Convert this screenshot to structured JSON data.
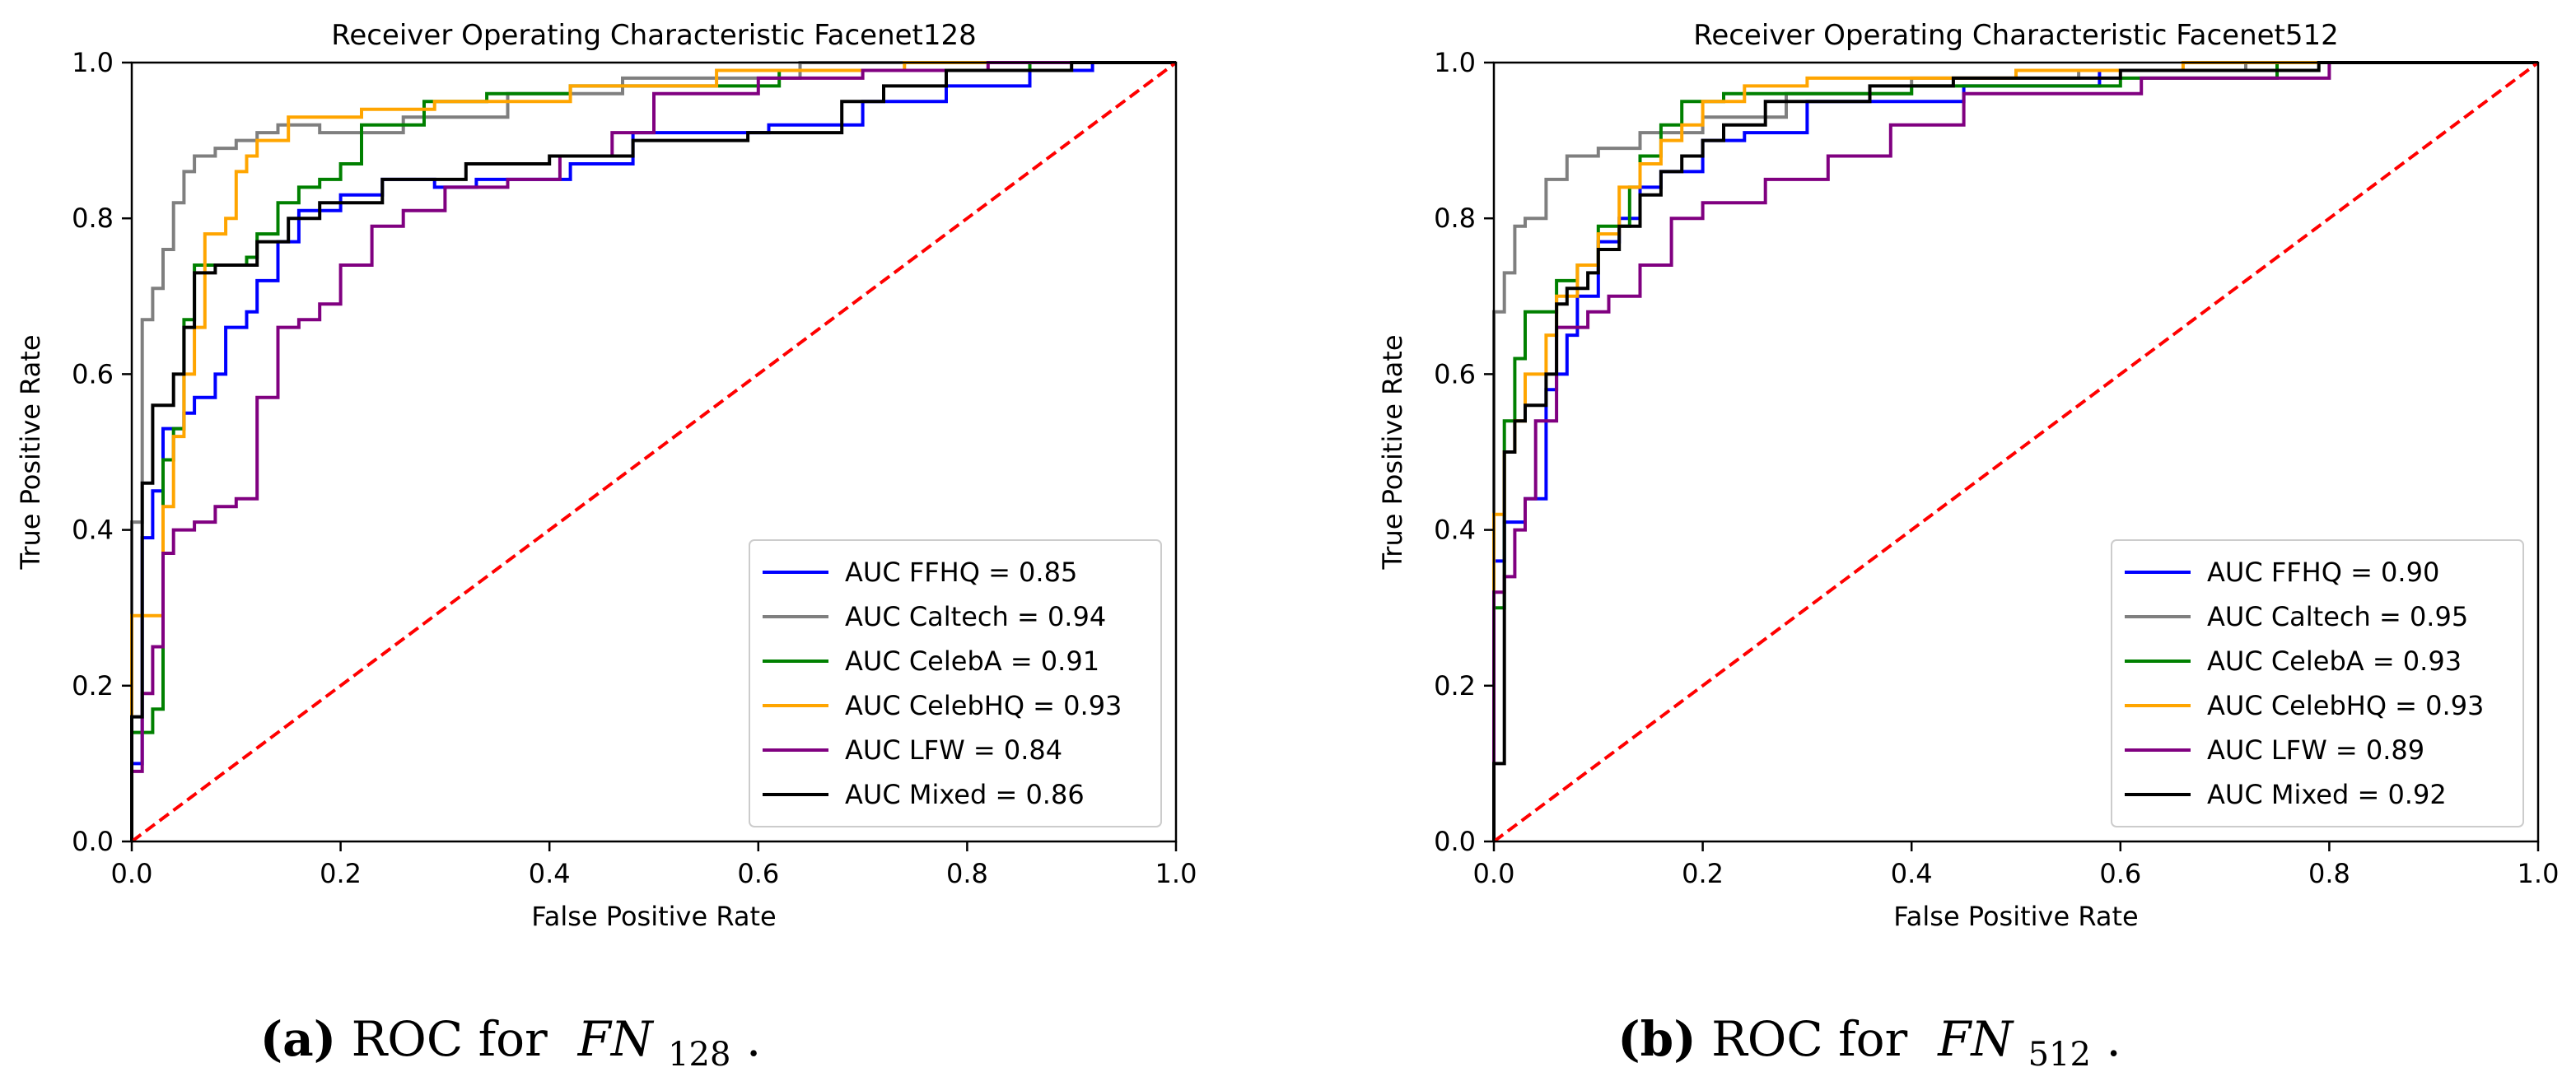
{
  "figure": {
    "subfigures": [
      {
        "label": "(a)",
        "text_pre": "ROC for ",
        "text_italic": "FN",
        "text_sub": "128",
        "text_post": "."
      },
      {
        "label": "(b)",
        "text_pre": "ROC for ",
        "text_italic": "FN",
        "text_sub": "512",
        "text_post": "."
      }
    ]
  },
  "chart_data": [
    {
      "type": "line",
      "title": "Receiver Operating Characteristic Facenet128",
      "xlabel": "False Positive Rate",
      "ylabel": "True Positive Rate",
      "xlim": [
        0,
        1
      ],
      "ylim": [
        0,
        1
      ],
      "xticks": [
        "0.0",
        "0.2",
        "0.4",
        "0.6",
        "0.8",
        "1.0"
      ],
      "yticks": [
        "0.0",
        "0.2",
        "0.4",
        "0.6",
        "0.8",
        "1.0"
      ],
      "legend_position": "lower-right",
      "diagonal": {
        "color": "#ff0000",
        "style": "dashed",
        "x": [
          0,
          1
        ],
        "y": [
          0,
          1
        ]
      },
      "series": [
        {
          "name": "AUC FFHQ = 0.85",
          "color": "#0000ff",
          "x": [
            0.0,
            0.0,
            0.01,
            0.01,
            0.02,
            0.02,
            0.03,
            0.03,
            0.05,
            0.05,
            0.06,
            0.06,
            0.08,
            0.08,
            0.09,
            0.09,
            0.11,
            0.11,
            0.12,
            0.12,
            0.14,
            0.14,
            0.16,
            0.16,
            0.2,
            0.2,
            0.24,
            0.24,
            0.29,
            0.29,
            0.33,
            0.33,
            0.42,
            0.42,
            0.48,
            0.48,
            0.61,
            0.61,
            0.7,
            0.7,
            0.78,
            0.78,
            0.86,
            0.86,
            0.92,
            0.92,
            1.0
          ],
          "y": [
            0.0,
            0.1,
            0.1,
            0.39,
            0.39,
            0.45,
            0.45,
            0.53,
            0.53,
            0.55,
            0.55,
            0.57,
            0.57,
            0.6,
            0.6,
            0.66,
            0.66,
            0.68,
            0.68,
            0.72,
            0.72,
            0.77,
            0.77,
            0.81,
            0.81,
            0.83,
            0.83,
            0.85,
            0.85,
            0.84,
            0.84,
            0.85,
            0.85,
            0.87,
            0.87,
            0.91,
            0.91,
            0.92,
            0.92,
            0.95,
            0.95,
            0.97,
            0.97,
            0.99,
            0.99,
            1.0,
            1.0
          ]
        },
        {
          "name": "AUC Caltech = 0.94",
          "color": "#7f7f7f",
          "x": [
            0.0,
            0.0,
            0.01,
            0.01,
            0.02,
            0.02,
            0.03,
            0.03,
            0.04,
            0.04,
            0.05,
            0.05,
            0.06,
            0.06,
            0.08,
            0.08,
            0.1,
            0.1,
            0.12,
            0.12,
            0.14,
            0.14,
            0.18,
            0.18,
            0.26,
            0.26,
            0.36,
            0.36,
            0.47,
            0.47,
            0.64,
            0.64,
            1.0
          ],
          "y": [
            0.0,
            0.41,
            0.41,
            0.67,
            0.67,
            0.71,
            0.71,
            0.76,
            0.76,
            0.82,
            0.82,
            0.86,
            0.86,
            0.88,
            0.88,
            0.89,
            0.89,
            0.9,
            0.9,
            0.91,
            0.91,
            0.92,
            0.92,
            0.91,
            0.91,
            0.93,
            0.93,
            0.96,
            0.96,
            0.98,
            0.98,
            1.0,
            1.0
          ]
        },
        {
          "name": "AUC CelebA = 0.91",
          "color": "#008000",
          "x": [
            0.0,
            0.0,
            0.02,
            0.02,
            0.03,
            0.03,
            0.04,
            0.04,
            0.05,
            0.05,
            0.06,
            0.06,
            0.11,
            0.11,
            0.12,
            0.12,
            0.14,
            0.14,
            0.16,
            0.16,
            0.18,
            0.18,
            0.2,
            0.2,
            0.22,
            0.22,
            0.28,
            0.28,
            0.34,
            0.34,
            0.42,
            0.42,
            0.62,
            0.62,
            0.86,
            0.86,
            1.0
          ],
          "y": [
            0.0,
            0.14,
            0.14,
            0.17,
            0.17,
            0.49,
            0.49,
            0.53,
            0.53,
            0.67,
            0.67,
            0.74,
            0.74,
            0.75,
            0.75,
            0.78,
            0.78,
            0.82,
            0.82,
            0.84,
            0.84,
            0.85,
            0.85,
            0.87,
            0.87,
            0.92,
            0.92,
            0.95,
            0.95,
            0.96,
            0.96,
            0.97,
            0.97,
            0.99,
            0.99,
            1.0,
            1.0
          ]
        },
        {
          "name": "AUC CelebHQ = 0.93",
          "color": "#ffa500",
          "x": [
            0.0,
            0.0,
            0.03,
            0.03,
            0.04,
            0.04,
            0.05,
            0.05,
            0.06,
            0.06,
            0.07,
            0.07,
            0.09,
            0.09,
            0.1,
            0.1,
            0.11,
            0.11,
            0.12,
            0.12,
            0.15,
            0.15,
            0.22,
            0.22,
            0.29,
            0.29,
            0.42,
            0.42,
            0.56,
            0.56,
            0.74,
            0.74,
            1.0
          ],
          "y": [
            0.0,
            0.29,
            0.29,
            0.43,
            0.43,
            0.52,
            0.52,
            0.6,
            0.6,
            0.66,
            0.66,
            0.78,
            0.78,
            0.8,
            0.8,
            0.86,
            0.86,
            0.88,
            0.88,
            0.9,
            0.9,
            0.93,
            0.93,
            0.94,
            0.94,
            0.95,
            0.95,
            0.97,
            0.97,
            0.99,
            0.99,
            1.0,
            1.0
          ]
        },
        {
          "name": "AUC LFW = 0.84",
          "color": "#800080",
          "x": [
            0.0,
            0.0,
            0.01,
            0.01,
            0.02,
            0.02,
            0.03,
            0.03,
            0.04,
            0.04,
            0.06,
            0.06,
            0.08,
            0.08,
            0.1,
            0.1,
            0.12,
            0.12,
            0.14,
            0.14,
            0.16,
            0.16,
            0.18,
            0.18,
            0.2,
            0.2,
            0.23,
            0.23,
            0.26,
            0.26,
            0.3,
            0.3,
            0.36,
            0.36,
            0.41,
            0.41,
            0.46,
            0.46,
            0.5,
            0.5,
            0.6,
            0.6,
            0.7,
            0.7,
            0.82,
            0.82,
            1.0
          ],
          "y": [
            0.0,
            0.09,
            0.09,
            0.19,
            0.19,
            0.25,
            0.25,
            0.37,
            0.37,
            0.4,
            0.4,
            0.41,
            0.41,
            0.43,
            0.43,
            0.44,
            0.44,
            0.57,
            0.57,
            0.66,
            0.66,
            0.67,
            0.67,
            0.69,
            0.69,
            0.74,
            0.74,
            0.79,
            0.79,
            0.81,
            0.81,
            0.84,
            0.84,
            0.85,
            0.85,
            0.88,
            0.88,
            0.91,
            0.91,
            0.96,
            0.96,
            0.98,
            0.98,
            0.99,
            0.99,
            1.0,
            1.0
          ]
        },
        {
          "name": "AUC Mixed = 0.86",
          "color": "#000000",
          "x": [
            0.0,
            0.0,
            0.01,
            0.01,
            0.02,
            0.02,
            0.04,
            0.04,
            0.05,
            0.05,
            0.06,
            0.06,
            0.08,
            0.08,
            0.12,
            0.12,
            0.15,
            0.15,
            0.18,
            0.18,
            0.24,
            0.24,
            0.32,
            0.32,
            0.4,
            0.4,
            0.48,
            0.48,
            0.59,
            0.59,
            0.68,
            0.68,
            0.72,
            0.72,
            0.78,
            0.78,
            0.9,
            0.9,
            1.0
          ],
          "y": [
            0.0,
            0.16,
            0.16,
            0.46,
            0.46,
            0.56,
            0.56,
            0.6,
            0.6,
            0.66,
            0.66,
            0.73,
            0.73,
            0.74,
            0.74,
            0.77,
            0.77,
            0.8,
            0.8,
            0.82,
            0.82,
            0.85,
            0.85,
            0.87,
            0.87,
            0.88,
            0.88,
            0.9,
            0.9,
            0.91,
            0.91,
            0.95,
            0.95,
            0.97,
            0.97,
            0.99,
            0.99,
            1.0,
            1.0
          ]
        }
      ]
    },
    {
      "type": "line",
      "title": "Receiver Operating Characteristic Facenet512",
      "xlabel": "False Positive Rate",
      "ylabel": "True Positive Rate",
      "xlim": [
        0,
        1
      ],
      "ylim": [
        0,
        1
      ],
      "xticks": [
        "0.0",
        "0.2",
        "0.4",
        "0.6",
        "0.8",
        "1.0"
      ],
      "yticks": [
        "0.0",
        "0.2",
        "0.4",
        "0.6",
        "0.8",
        "1.0"
      ],
      "legend_position": "lower-right",
      "diagonal": {
        "color": "#ff0000",
        "style": "dashed",
        "x": [
          0,
          1
        ],
        "y": [
          0,
          1
        ]
      },
      "series": [
        {
          "name": "AUC FFHQ = 0.90",
          "color": "#0000ff",
          "x": [
            0.0,
            0.0,
            0.01,
            0.01,
            0.03,
            0.03,
            0.05,
            0.05,
            0.06,
            0.06,
            0.07,
            0.07,
            0.08,
            0.08,
            0.1,
            0.1,
            0.12,
            0.12,
            0.14,
            0.14,
            0.16,
            0.16,
            0.2,
            0.2,
            0.24,
            0.24,
            0.3,
            0.3,
            0.45,
            0.45,
            0.58,
            0.58,
            0.72,
            0.72,
            1.0
          ],
          "y": [
            0.0,
            0.36,
            0.36,
            0.41,
            0.41,
            0.44,
            0.44,
            0.58,
            0.58,
            0.6,
            0.6,
            0.65,
            0.65,
            0.7,
            0.7,
            0.77,
            0.77,
            0.8,
            0.8,
            0.84,
            0.84,
            0.86,
            0.86,
            0.9,
            0.9,
            0.91,
            0.91,
            0.95,
            0.95,
            0.97,
            0.97,
            0.99,
            0.99,
            1.0,
            1.0
          ]
        },
        {
          "name": "AUC Caltech = 0.95",
          "color": "#7f7f7f",
          "x": [
            0.0,
            0.0,
            0.01,
            0.01,
            0.02,
            0.02,
            0.03,
            0.03,
            0.05,
            0.05,
            0.07,
            0.07,
            0.1,
            0.1,
            0.14,
            0.14,
            0.2,
            0.2,
            0.28,
            0.28,
            0.4,
            0.4,
            0.56,
            0.56,
            0.72,
            0.72,
            1.0
          ],
          "y": [
            0.0,
            0.68,
            0.68,
            0.73,
            0.73,
            0.79,
            0.79,
            0.8,
            0.8,
            0.85,
            0.85,
            0.88,
            0.88,
            0.89,
            0.89,
            0.91,
            0.91,
            0.93,
            0.93,
            0.96,
            0.96,
            0.98,
            0.98,
            0.99,
            0.99,
            1.0,
            1.0
          ]
        },
        {
          "name": "AUC CelebA = 0.93",
          "color": "#008000",
          "x": [
            0.0,
            0.0,
            0.01,
            0.01,
            0.02,
            0.02,
            0.03,
            0.03,
            0.06,
            0.06,
            0.08,
            0.08,
            0.1,
            0.1,
            0.13,
            0.13,
            0.14,
            0.14,
            0.16,
            0.16,
            0.18,
            0.18,
            0.22,
            0.22,
            0.4,
            0.4,
            0.6,
            0.6,
            0.75,
            0.75,
            1.0
          ],
          "y": [
            0.0,
            0.3,
            0.3,
            0.54,
            0.54,
            0.62,
            0.62,
            0.68,
            0.68,
            0.72,
            0.72,
            0.74,
            0.74,
            0.79,
            0.79,
            0.84,
            0.84,
            0.88,
            0.88,
            0.92,
            0.92,
            0.95,
            0.95,
            0.96,
            0.96,
            0.97,
            0.97,
            0.98,
            0.98,
            1.0,
            1.0
          ]
        },
        {
          "name": "AUC CelebHQ = 0.93",
          "color": "#ffa500",
          "x": [
            0.0,
            0.0,
            0.01,
            0.01,
            0.02,
            0.02,
            0.03,
            0.03,
            0.05,
            0.05,
            0.06,
            0.06,
            0.08,
            0.08,
            0.1,
            0.1,
            0.12,
            0.12,
            0.14,
            0.14,
            0.16,
            0.16,
            0.18,
            0.18,
            0.2,
            0.2,
            0.24,
            0.24,
            0.3,
            0.3,
            0.5,
            0.5,
            0.66,
            0.66,
            1.0
          ],
          "y": [
            0.0,
            0.42,
            0.42,
            0.5,
            0.5,
            0.54,
            0.54,
            0.6,
            0.6,
            0.65,
            0.65,
            0.7,
            0.7,
            0.74,
            0.74,
            0.78,
            0.78,
            0.84,
            0.84,
            0.87,
            0.87,
            0.9,
            0.9,
            0.92,
            0.92,
            0.95,
            0.95,
            0.97,
            0.97,
            0.98,
            0.98,
            0.99,
            0.99,
            1.0,
            1.0
          ]
        },
        {
          "name": "AUC LFW = 0.89",
          "color": "#800080",
          "x": [
            0.0,
            0.0,
            0.01,
            0.01,
            0.02,
            0.02,
            0.03,
            0.03,
            0.04,
            0.04,
            0.06,
            0.06,
            0.09,
            0.09,
            0.11,
            0.11,
            0.14,
            0.14,
            0.17,
            0.17,
            0.2,
            0.2,
            0.26,
            0.26,
            0.32,
            0.32,
            0.38,
            0.38,
            0.45,
            0.45,
            0.62,
            0.62,
            0.8,
            0.8,
            1.0
          ],
          "y": [
            0.0,
            0.32,
            0.32,
            0.34,
            0.34,
            0.4,
            0.4,
            0.44,
            0.44,
            0.54,
            0.54,
            0.66,
            0.66,
            0.68,
            0.68,
            0.7,
            0.7,
            0.74,
            0.74,
            0.8,
            0.8,
            0.82,
            0.82,
            0.85,
            0.85,
            0.88,
            0.88,
            0.92,
            0.92,
            0.96,
            0.96,
            0.98,
            0.98,
            1.0,
            1.0
          ]
        },
        {
          "name": "AUC Mixed = 0.92",
          "color": "#000000",
          "x": [
            0.0,
            0.0,
            0.01,
            0.01,
            0.02,
            0.02,
            0.03,
            0.03,
            0.05,
            0.05,
            0.06,
            0.06,
            0.07,
            0.07,
            0.09,
            0.09,
            0.1,
            0.1,
            0.12,
            0.12,
            0.14,
            0.14,
            0.16,
            0.16,
            0.18,
            0.18,
            0.2,
            0.2,
            0.22,
            0.22,
            0.26,
            0.26,
            0.36,
            0.36,
            0.44,
            0.44,
            0.6,
            0.6,
            0.79,
            0.79,
            1.0
          ],
          "y": [
            0.0,
            0.1,
            0.1,
            0.5,
            0.5,
            0.54,
            0.54,
            0.56,
            0.56,
            0.6,
            0.6,
            0.69,
            0.69,
            0.71,
            0.71,
            0.73,
            0.73,
            0.76,
            0.76,
            0.79,
            0.79,
            0.83,
            0.83,
            0.86,
            0.86,
            0.88,
            0.88,
            0.9,
            0.9,
            0.92,
            0.92,
            0.95,
            0.95,
            0.97,
            0.97,
            0.98,
            0.98,
            0.99,
            0.99,
            1.0,
            1.0
          ]
        }
      ]
    }
  ]
}
